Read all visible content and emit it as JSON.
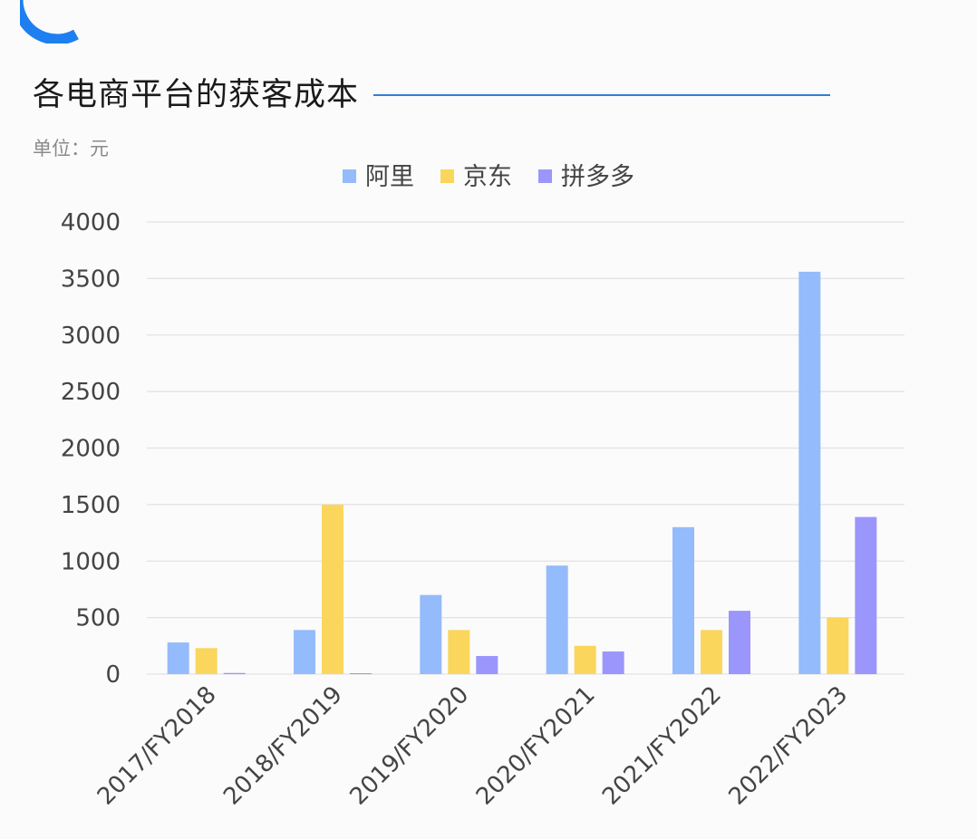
{
  "header": {
    "title": "各电商平台的获客成本",
    "unit": "单位：元"
  },
  "colors": {
    "accent": "#1e7ff0",
    "title_rule": "#2f7fd9",
    "grid": "#e2e2e2",
    "tick_text": "#444444"
  },
  "chart_data": {
    "type": "bar",
    "title": "各电商平台的获客成本",
    "ylabel": "单位：元",
    "ylim": [
      0,
      4000
    ],
    "yticks": [
      0,
      500,
      1000,
      1500,
      2000,
      2500,
      3000,
      3500,
      4000
    ],
    "grid": true,
    "legend_position": "top-center",
    "categories": [
      "2017/FY2018",
      "2018/FY2019",
      "2019/FY2020",
      "2020/FY2021",
      "2021/FY2022",
      "2022/FY2023"
    ],
    "series": [
      {
        "name": "阿里",
        "color": "#94bbfb",
        "values": [
          280,
          390,
          700,
          960,
          1300,
          3560
        ]
      },
      {
        "name": "京东",
        "color": "#fad65c",
        "values": [
          230,
          1500,
          390,
          250,
          390,
          500
        ]
      },
      {
        "name": "拼多多",
        "color": "#9b96fb",
        "values": [
          10,
          5,
          160,
          200,
          560,
          1390
        ]
      }
    ]
  }
}
